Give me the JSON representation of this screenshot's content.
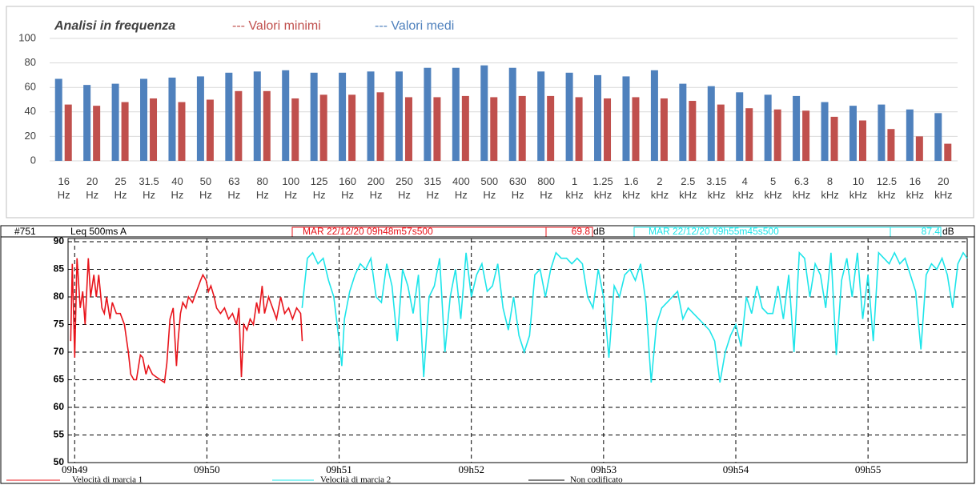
{
  "chart_data": [
    {
      "type": "bar",
      "title": "Analisi in frequenza",
      "categories": [
        "16 Hz",
        "20 Hz",
        "25 Hz",
        "31.5 Hz",
        "40 Hz",
        "50 Hz",
        "63 Hz",
        "80 Hz",
        "100 Hz",
        "125 Hz",
        "160 Hz",
        "200 Hz",
        "250 Hz",
        "315 Hz",
        "400 Hz",
        "500 Hz",
        "630 Hz",
        "800 Hz",
        "1 kHz",
        "1.25 kHz",
        "1.6 kHz",
        "2 kHz",
        "2.5 kHz",
        "3.15 kHz",
        "4 kHz",
        "5 kHz",
        "6.3 kHz",
        "8 kHz",
        "10 kHz",
        "12.5 kHz",
        "16 kHz",
        "20 kHz"
      ],
      "series": [
        {
          "name": "--- Valori medi",
          "color": "#4f81bd",
          "values": [
            67,
            62,
            63,
            67,
            68,
            69,
            72,
            73,
            74,
            72,
            72,
            73,
            73,
            76,
            76,
            78,
            76,
            73,
            72,
            70,
            69,
            74,
            63,
            61,
            56,
            54,
            53,
            48,
            45,
            46,
            42,
            39
          ]
        },
        {
          "name": "--- Valori minimi",
          "color": "#c0504d",
          "values": [
            46,
            45,
            48,
            51,
            48,
            50,
            57,
            57,
            51,
            54,
            54,
            56,
            52,
            52,
            53,
            52,
            53,
            53,
            52,
            51,
            52,
            51,
            49,
            46,
            43,
            42,
            41,
            36,
            33,
            26,
            20,
            14
          ]
        }
      ],
      "ylim": [
        0,
        100
      ],
      "yticks": [
        0,
        20,
        40,
        60,
        80,
        100
      ],
      "grid": true
    },
    {
      "type": "line",
      "id": "#751",
      "measure": "Leq 500ms  A",
      "start_label": "MAR 22/12/20 09h48m57s500",
      "start_value": 69.8,
      "unit": "dB",
      "end_label": "MAR 22/12/20 09h55m45s500",
      "end_value": 87.4,
      "series": [
        {
          "name": "Velocità di marcia 1",
          "color": "#e8141b",
          "x": [
            48.97,
            48.982,
            49.0,
            49.018,
            49.042,
            49.061,
            49.079,
            49.103,
            49.121,
            49.145,
            49.164,
            49.182,
            49.206,
            49.224,
            49.242,
            49.267,
            49.285,
            49.315,
            49.345,
            49.376,
            49.406,
            49.424,
            49.448,
            49.467,
            49.497,
            49.515,
            49.539,
            49.558,
            49.588,
            49.618,
            49.648,
            49.679,
            49.697,
            49.721,
            49.745,
            49.77,
            49.782,
            49.8,
            49.818,
            49.842,
            49.861,
            49.891,
            49.921,
            49.952,
            49.97,
            49.994,
            50.012,
            50.03,
            50.055,
            50.073,
            50.103,
            50.133,
            50.164,
            50.194,
            50.224,
            50.242,
            50.261,
            50.279,
            50.303,
            50.327,
            50.352,
            50.376,
            50.394,
            50.418,
            50.436,
            50.467,
            50.497,
            50.527,
            50.558,
            50.588,
            50.618,
            50.648,
            50.679,
            50.709,
            50.721
          ],
          "values": [
            72,
            86,
            69,
            87,
            78,
            81,
            75,
            87,
            80,
            84,
            80,
            84,
            78,
            77,
            80,
            76,
            79,
            77,
            77,
            75,
            70,
            66,
            65,
            65,
            69.5,
            69,
            66,
            67.5,
            66,
            65.5,
            65,
            64.5,
            68,
            76,
            78,
            67.5,
            72,
            77,
            79,
            78,
            80,
            79,
            81,
            83,
            84,
            83,
            81,
            82,
            80,
            78,
            77,
            78,
            76,
            77,
            75,
            78,
            65.5,
            75,
            74,
            76,
            75,
            79,
            77,
            82,
            77,
            80,
            78,
            76,
            80,
            77,
            78,
            76,
            78,
            77,
            72
          ]
        },
        {
          "name": "Velocità di marcia 2",
          "color": "#1ee5ea",
          "x": [
            50.72,
            50.76,
            50.8,
            50.84,
            50.88,
            50.92,
            50.96,
            51.0,
            51.02,
            51.04,
            51.08,
            51.12,
            51.16,
            51.2,
            51.24,
            51.28,
            51.32,
            51.36,
            51.4,
            51.44,
            51.48,
            51.52,
            51.56,
            51.6,
            51.64,
            51.68,
            51.72,
            51.76,
            51.8,
            51.84,
            51.88,
            51.92,
            51.96,
            52.0,
            52.04,
            52.08,
            52.12,
            52.16,
            52.2,
            52.24,
            52.28,
            52.32,
            52.36,
            52.4,
            52.44,
            52.48,
            52.52,
            52.56,
            52.6,
            52.64,
            52.68,
            52.72,
            52.76,
            52.8,
            52.84,
            52.88,
            52.92,
            52.96,
            53.0,
            53.04,
            53.08,
            53.12,
            53.16,
            53.2,
            53.24,
            53.28,
            53.32,
            53.36,
            53.4,
            53.44,
            53.48,
            53.52,
            53.56,
            53.6,
            53.64,
            53.68,
            53.72,
            53.76,
            53.8,
            53.84,
            53.88,
            53.92,
            53.96,
            54.0,
            54.04,
            54.08,
            54.12,
            54.16,
            54.2,
            54.24,
            54.28,
            54.32,
            54.36,
            54.4,
            54.44,
            54.48,
            54.52,
            54.56,
            54.6,
            54.64,
            54.68,
            54.72,
            54.76,
            54.8,
            54.84,
            54.88,
            54.92,
            54.96,
            55.0,
            55.04,
            55.08,
            55.12,
            55.16,
            55.2,
            55.24,
            55.28,
            55.32,
            55.36,
            55.4,
            55.44,
            55.48,
            55.52,
            55.56,
            55.6,
            55.64,
            55.68,
            55.72,
            55.75
          ],
          "values": [
            78,
            87,
            88,
            86,
            87,
            83,
            80,
            72,
            67.5,
            76,
            81,
            84,
            86,
            85,
            87,
            80,
            79,
            86,
            82,
            72,
            85,
            82,
            77,
            84,
            65.5,
            80,
            82,
            87,
            70,
            80,
            85,
            76,
            88,
            80,
            84,
            86,
            81,
            82,
            86,
            78,
            74,
            80,
            73,
            70,
            73,
            84,
            85,
            80,
            85,
            88,
            87,
            87,
            86,
            87,
            86,
            80,
            78,
            85,
            80,
            69,
            82,
            80,
            84,
            85,
            83,
            86,
            79,
            64.5,
            75,
            78,
            79,
            80,
            81,
            76,
            78,
            77,
            76,
            75,
            74,
            72,
            64.5,
            70,
            73,
            75,
            71,
            80,
            77,
            82,
            78,
            77,
            77,
            82,
            76,
            84,
            70,
            88,
            87,
            80,
            86,
            84,
            78,
            88,
            69.5,
            83,
            87,
            80,
            88,
            76,
            84,
            72,
            88,
            87,
            86,
            88,
            86,
            87,
            84,
            81,
            70.5,
            84,
            86,
            85,
            87,
            84,
            78,
            86,
            88,
            87
          ]
        },
        {
          "name": "Non codificato",
          "color": "#000000",
          "x": [],
          "values": []
        }
      ],
      "xlim": [
        48.95,
        55.75
      ],
      "xticks": [
        {
          "value": 49,
          "label": "09h49"
        },
        {
          "value": 50,
          "label": "09h50"
        },
        {
          "value": 51,
          "label": "09h51"
        },
        {
          "value": 52,
          "label": "09h52"
        },
        {
          "value": 53,
          "label": "09h53"
        },
        {
          "value": 54,
          "label": "09h54"
        },
        {
          "value": 55,
          "label": "09h55"
        }
      ],
      "ylim": [
        50,
        90
      ],
      "yticks": [
        50,
        55,
        60,
        65,
        70,
        75,
        80,
        85,
        90
      ],
      "grid": true
    }
  ]
}
